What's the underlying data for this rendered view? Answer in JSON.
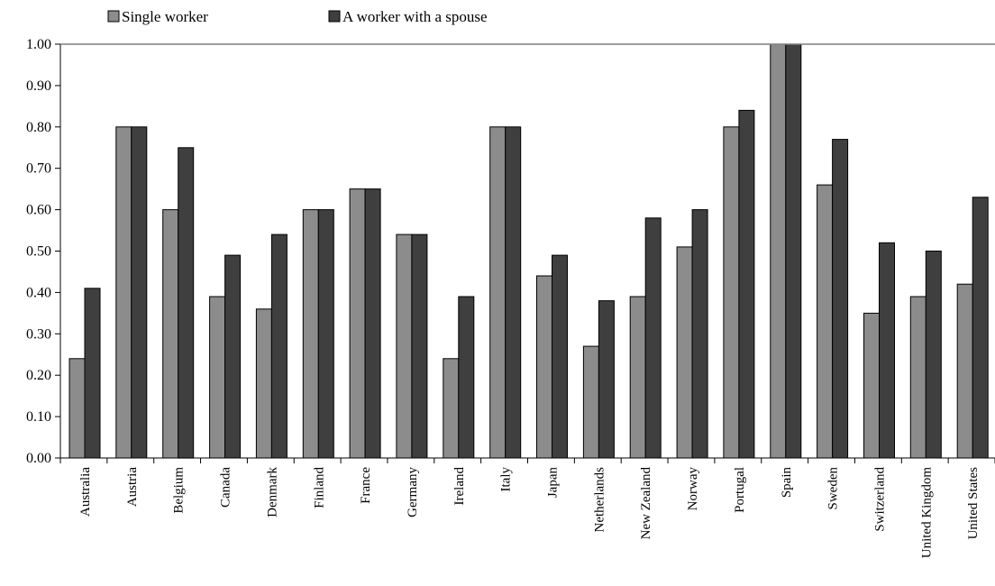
{
  "chart_data": {
    "type": "bar",
    "categories": [
      "Australia",
      "Austria",
      "Belgium",
      "Canada",
      "Denmark",
      "Finland",
      "France",
      "Germany",
      "Ireland",
      "Italy",
      "Japan",
      "Netherlands",
      "New Zealand",
      "Norway",
      "Portugal",
      "Spain",
      "Sweden",
      "Switzerland",
      "United Kingdom",
      "United States"
    ],
    "series": [
      {
        "name": "Single worker",
        "color": "#8c8c8c",
        "values": [
          0.24,
          0.8,
          0.6,
          0.39,
          0.36,
          0.6,
          0.65,
          0.54,
          0.24,
          0.8,
          0.44,
          0.27,
          0.39,
          0.51,
          0.8,
          1.0,
          0.66,
          0.35,
          0.39,
          0.42
        ]
      },
      {
        "name": "A worker with a spouse",
        "color": "#3f3f3f",
        "values": [
          0.41,
          0.8,
          0.75,
          0.49,
          0.54,
          0.6,
          0.65,
          0.54,
          0.39,
          0.8,
          0.49,
          0.38,
          0.58,
          0.6,
          0.84,
          1.0,
          0.77,
          0.52,
          0.5,
          0.63
        ]
      }
    ],
    "yticks": [
      "0.00",
      "0.10",
      "0.20",
      "0.30",
      "0.40",
      "0.50",
      "0.60",
      "0.70",
      "0.80",
      "0.90",
      "1.00"
    ],
    "ylim": [
      0,
      1.0
    ],
    "grid": false,
    "legend": "top-left",
    "title": "",
    "xlabel": "",
    "ylabel": ""
  }
}
